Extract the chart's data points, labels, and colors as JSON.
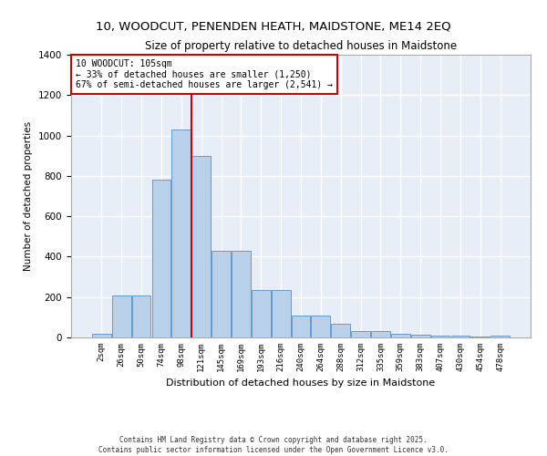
{
  "title_line1": "10, WOODCUT, PENENDEN HEATH, MAIDSTONE, ME14 2EQ",
  "title_line2": "Size of property relative to detached houses in Maidstone",
  "xlabel": "Distribution of detached houses by size in Maidstone",
  "ylabel": "Number of detached properties",
  "categories": [
    "2sqm",
    "26sqm",
    "50sqm",
    "74sqm",
    "98sqm",
    "121sqm",
    "145sqm",
    "169sqm",
    "193sqm",
    "216sqm",
    "240sqm",
    "264sqm",
    "288sqm",
    "312sqm",
    "335sqm",
    "359sqm",
    "383sqm",
    "407sqm",
    "430sqm",
    "454sqm",
    "478sqm"
  ],
  "values": [
    20,
    210,
    210,
    780,
    1030,
    900,
    430,
    430,
    235,
    235,
    110,
    110,
    70,
    30,
    30,
    20,
    15,
    10,
    10,
    5,
    10
  ],
  "bar_color": "#b8d0ea",
  "bar_edge_color": "#6699cc",
  "background_color": "#e8eef8",
  "grid_color": "#ffffff",
  "vline_x_idx": 4,
  "vline_color": "#cc0000",
  "annotation_text": "10 WOODCUT: 105sqm\n← 33% of detached houses are smaller (1,250)\n67% of semi-detached houses are larger (2,541) →",
  "annotation_box_color": "#cc0000",
  "ylim": [
    0,
    1400
  ],
  "yticks": [
    0,
    200,
    400,
    600,
    800,
    1000,
    1200,
    1400
  ],
  "footer_line1": "Contains HM Land Registry data © Crown copyright and database right 2025.",
  "footer_line2": "Contains public sector information licensed under the Open Government Licence v3.0."
}
